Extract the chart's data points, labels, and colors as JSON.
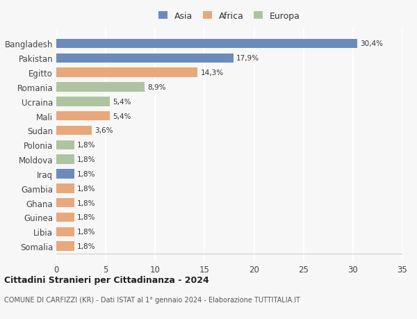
{
  "categories": [
    "Somalia",
    "Libia",
    "Guinea",
    "Ghana",
    "Gambia",
    "Iraq",
    "Moldova",
    "Polonia",
    "Sudan",
    "Mali",
    "Ucraina",
    "Romania",
    "Egitto",
    "Pakistan",
    "Bangladesh"
  ],
  "values": [
    1.8,
    1.8,
    1.8,
    1.8,
    1.8,
    1.8,
    1.8,
    1.8,
    3.6,
    5.4,
    5.4,
    8.9,
    14.3,
    17.9,
    30.4
  ],
  "labels": [
    "1,8%",
    "1,8%",
    "1,8%",
    "1,8%",
    "1,8%",
    "1,8%",
    "1,8%",
    "1,8%",
    "3,6%",
    "5,4%",
    "5,4%",
    "8,9%",
    "14,3%",
    "17,9%",
    "30,4%"
  ],
  "colors": [
    "#e8a87c",
    "#e8a87c",
    "#e8a87c",
    "#e8a87c",
    "#e8a87c",
    "#6b8cba",
    "#aec4a0",
    "#aec4a0",
    "#e8a87c",
    "#e8a87c",
    "#aec4a0",
    "#aec4a0",
    "#e8a87c",
    "#6b8cba",
    "#6b8cba"
  ],
  "legend_labels": [
    "Asia",
    "Africa",
    "Europa"
  ],
  "legend_colors": [
    "#6b8cba",
    "#e8a87c",
    "#aec4a0"
  ],
  "title1": "Cittadini Stranieri per Cittadinanza - 2024",
  "title2": "COMUNE DI CARFIZZI (KR) - Dati ISTAT al 1° gennaio 2024 - Elaborazione TUTTITALIA.IT",
  "xlim": [
    0,
    35
  ],
  "xticks": [
    0,
    5,
    10,
    15,
    20,
    25,
    30,
    35
  ],
  "bg_color": "#f7f7f7",
  "grid_color": "#ffffff",
  "bar_height": 0.65
}
